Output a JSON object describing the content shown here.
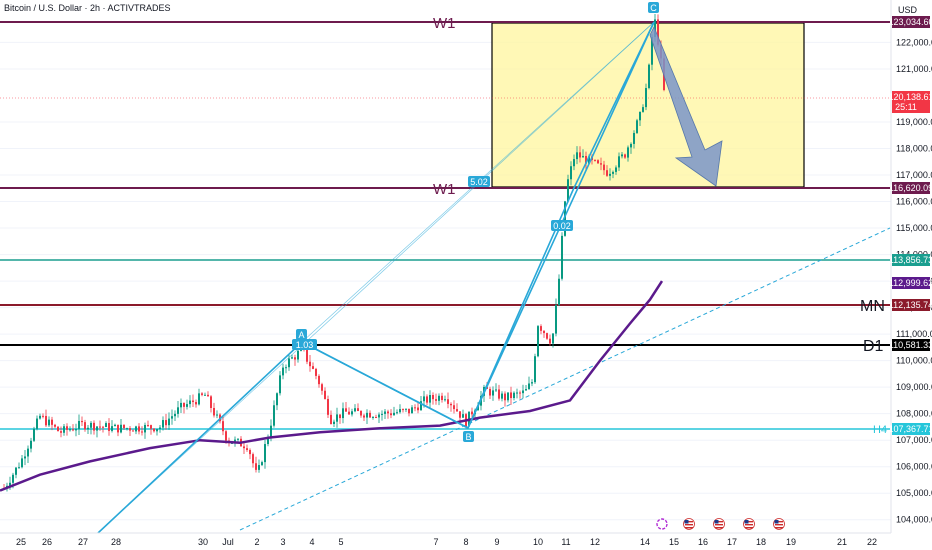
{
  "header": {
    "symbol_title": "Bitcoin / U.S. Dollar · 2h · ACTIVTRADES",
    "currency": "USD"
  },
  "colors": {
    "w1_line": "#6d1b4e",
    "mn_line": "#8b1a2b",
    "d1_line": "#000000",
    "teal_line": "#1a9e8f",
    "h4_line": "#26c6da",
    "pattern_line": "#29a8d8",
    "ma_line": "#5b1a8c",
    "current_price_badge": "#f23645",
    "bull_candle": "#089981",
    "bear_candle": "#f23645",
    "box_fill": "#fff59d",
    "arrow_fill": "#7a95c9"
  },
  "levels": {
    "w1_upper": {
      "label": "W1",
      "price": "123,034.60"
    },
    "w1_lower": {
      "label": "W1",
      "price": "116,620.09"
    },
    "teal": {
      "price": "113,856.73"
    },
    "ma_value": {
      "price": "112,999.62"
    },
    "mn": {
      "label": "MN",
      "price": "112,135.74"
    },
    "d1": {
      "label": "D1",
      "price": "110,581.33"
    },
    "h4": {
      "label": "H4",
      "price": "107,367.71"
    },
    "current": {
      "price": "120,138.61",
      "countdown": "25:11"
    }
  },
  "pattern": {
    "points": [
      "A",
      "B",
      "C"
    ],
    "ratios": [
      "1.03",
      "0.02",
      "5.02"
    ]
  },
  "chart_data": {
    "type": "line",
    "title": "Bitcoin / U.S. Dollar · 2h · ACTIVTRADES",
    "y_tick_labels": [
      "122,000.00",
      "121,000.00",
      "119,000.00",
      "118,000.00",
      "117,000.00",
      "116,000.00",
      "115,000.00",
      "114,000.00",
      "113,000.00",
      "112,000.00",
      "111,000.00",
      "110,000.00",
      "109,000.00",
      "108,000.00",
      "107,000.00",
      "106,000.00",
      "105,000.00",
      "104,000.00"
    ],
    "x_tick_labels": [
      "25",
      "26",
      "27",
      "28",
      "30",
      "Jul",
      "2",
      "3",
      "4",
      "5",
      "7",
      "8",
      "9",
      "10",
      "11",
      "12",
      "14",
      "15",
      "16",
      "17",
      "18",
      "19",
      "21",
      "22"
    ],
    "ylim": [
      103500,
      123600
    ],
    "series": [
      {
        "values": [
          {
            "x": "Jun 25",
            "y": 105800
          },
          {
            "x": "Jun 26",
            "y": 107800
          },
          {
            "x": "Jun 27",
            "y": 107200
          },
          {
            "x": "Jun 28",
            "y": 107400
          },
          {
            "x": "Jun 30",
            "y": 107600
          },
          {
            "x": "Jul 1",
            "y": 106700
          },
          {
            "x": "Jul 2",
            "y": 106500
          },
          {
            "x": "Jul 3",
            "y": 109500
          },
          {
            "x": "Jul 4",
            "y": 110400
          },
          {
            "x": "Jul 5",
            "y": 108200
          },
          {
            "x": "Jul 7",
            "y": 108000
          },
          {
            "x": "Jul 8",
            "y": 107700
          },
          {
            "x": "Jul 9",
            "y": 108600
          },
          {
            "x": "Jul 10",
            "y": 111400
          },
          {
            "x": "Jul 11",
            "y": 117600
          },
          {
            "x": "Jul 12",
            "y": 117400
          },
          {
            "x": "Jul 14",
            "y": 123034
          },
          {
            "x": "Jul 14 (last)",
            "y": 120138
          }
        ]
      }
    ]
  }
}
